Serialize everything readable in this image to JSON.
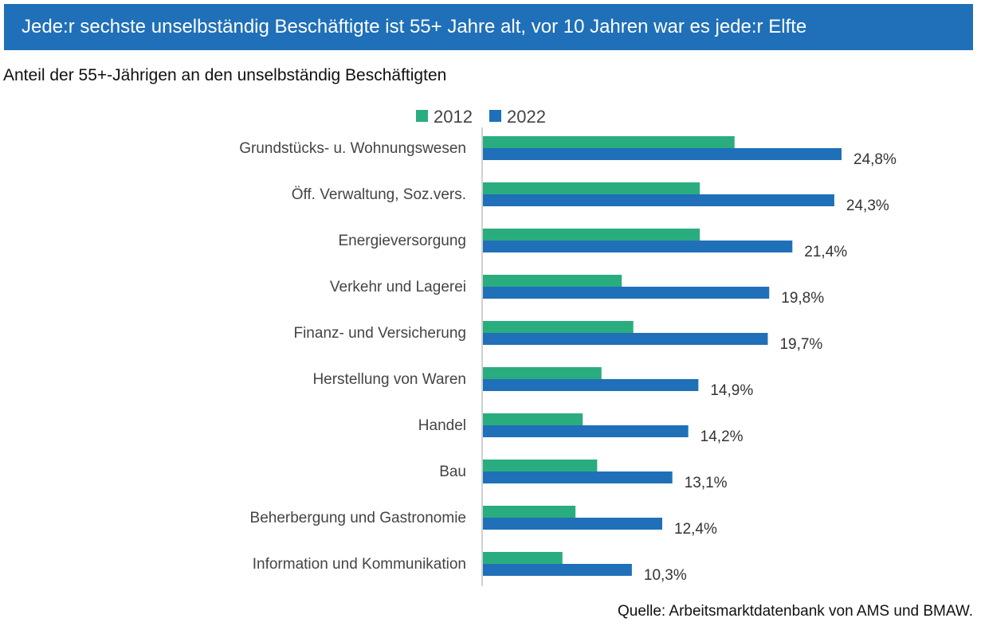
{
  "header": {
    "title": "Jede:r sechste unselbständig Beschäftigte ist 55+ Jahre alt, vor 10 Jahren war es jede:r Elfte",
    "subtitle": "Anteil der 55+-Jährigen an den unselbständig Beschäftigten"
  },
  "footer": {
    "source": "Quelle: Arbeitsmarktdatenbank von AMS und BMAW."
  },
  "colors": {
    "banner": "#1f70b8",
    "series_2012": "#2aad7e",
    "series_2022": "#1f70b8"
  },
  "chart_data": {
    "type": "bar",
    "orientation": "horizontal",
    "title": "Anteil der 55+-Jährigen an den unselbständig Beschäftigten",
    "xlabel": "",
    "ylabel": "",
    "xlim": [
      0,
      26
    ],
    "grid": false,
    "legend": {
      "position": "top",
      "entries": [
        "2012",
        "2022"
      ]
    },
    "categories": [
      "Grundstücks- u. Wohnungswesen",
      "Öff. Verwaltung, Soz.vers.",
      "Energieversorgung",
      "Verkehr und Lagerei",
      "Finanz- und Versicherung",
      "Herstellung von Waren",
      "Handel",
      "Bau",
      "Beherbergung und Gastronomie",
      "Information und Kommunikation"
    ],
    "series": [
      {
        "name": "2012",
        "color": "#2aad7e",
        "values": [
          17.4,
          15.0,
          15.0,
          9.6,
          10.4,
          8.2,
          6.9,
          7.9,
          6.4,
          5.5
        ],
        "labels": []
      },
      {
        "name": "2022",
        "color": "#1f70b8",
        "values": [
          24.8,
          24.3,
          21.4,
          19.8,
          19.7,
          14.9,
          14.2,
          13.1,
          12.4,
          10.3
        ],
        "labels": [
          "24,8%",
          "24,3%",
          "21,4%",
          "19,8%",
          "19,7%",
          "14,9%",
          "14,2%",
          "13,1%",
          "12,4%",
          "10,3%"
        ]
      }
    ]
  }
}
